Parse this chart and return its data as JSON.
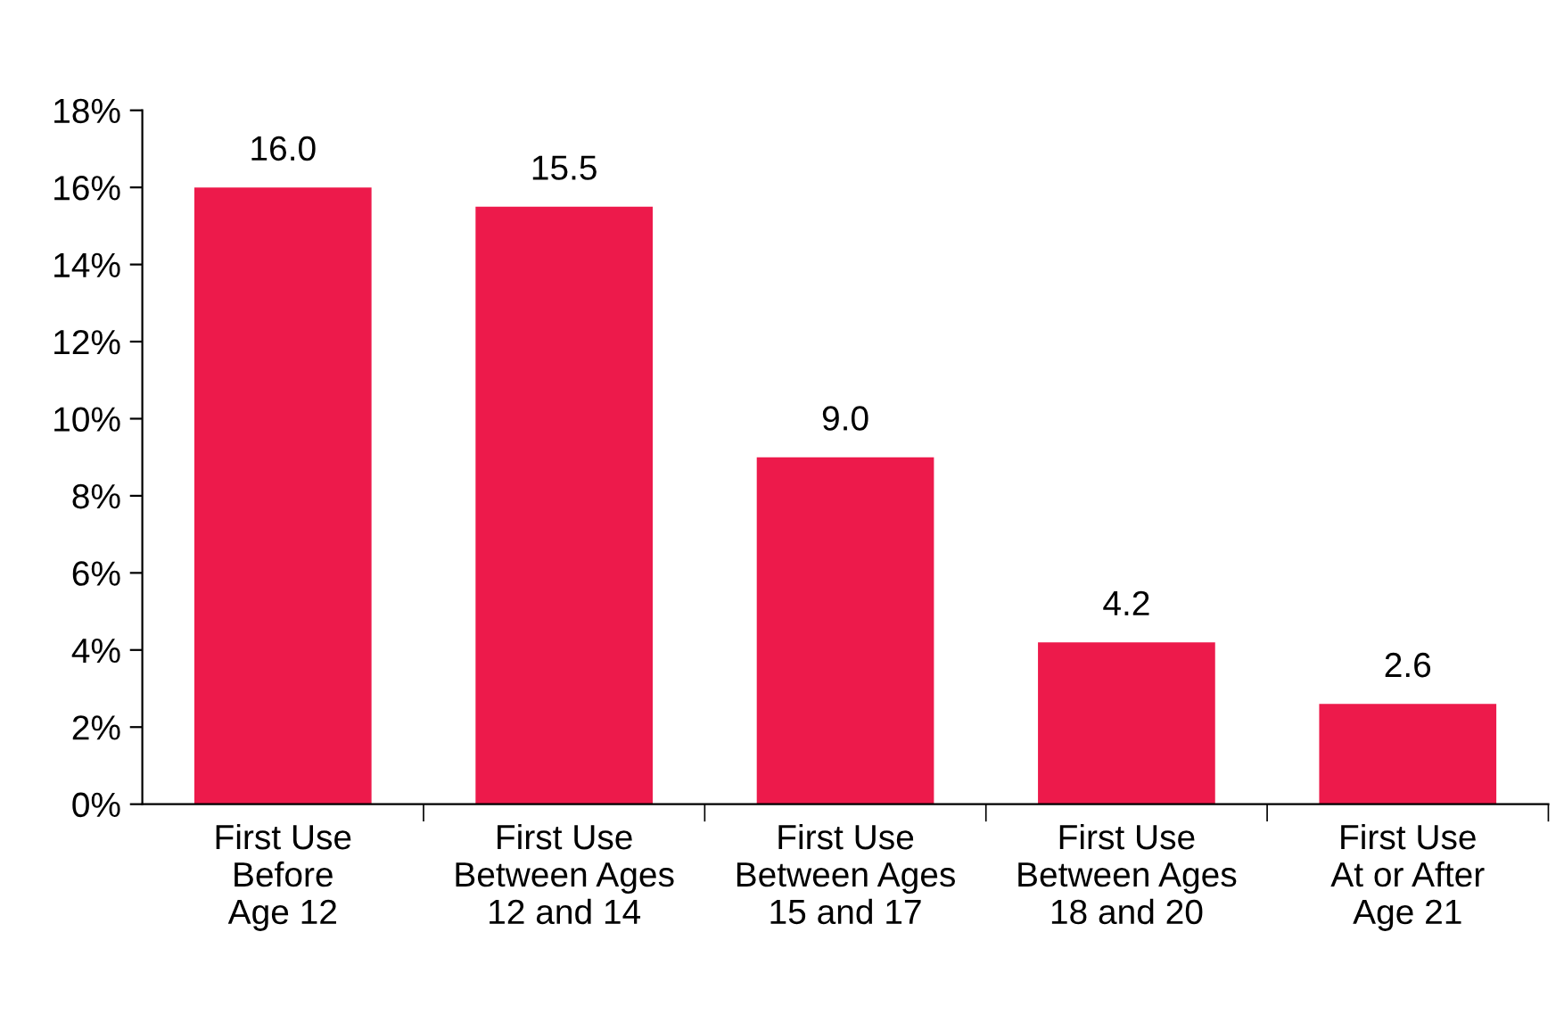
{
  "chart_data": {
    "type": "bar",
    "categories": [
      "First Use\nBefore\nAge 12",
      "First Use\nBetween Ages\n12 and 14",
      "First Use\nBetween Ages\n15 and 17",
      "First Use\nBetween Ages\n18 and 20",
      "First Use\nAt or After\nAge 21"
    ],
    "values": [
      16.0,
      15.5,
      9.0,
      4.2,
      2.6
    ],
    "color": "#ed1a4b",
    "ylim": [
      0,
      18
    ],
    "yticks": [
      {
        "value": 0,
        "label": "0%"
      },
      {
        "value": 2,
        "label": "2%"
      },
      {
        "value": 4,
        "label": "4%"
      },
      {
        "value": 6,
        "label": "6%"
      },
      {
        "value": 8,
        "label": "8%"
      },
      {
        "value": 10,
        "label": "10%"
      },
      {
        "value": 12,
        "label": "12%"
      },
      {
        "value": 14,
        "label": "14%"
      },
      {
        "value": 16,
        "label": "16%"
      },
      {
        "value": 18,
        "label": "18%"
      }
    ],
    "value_labels": [
      "16.0",
      "15.5",
      "9.0",
      "4.2",
      "2.6"
    ],
    "grid": false,
    "legend": false
  }
}
